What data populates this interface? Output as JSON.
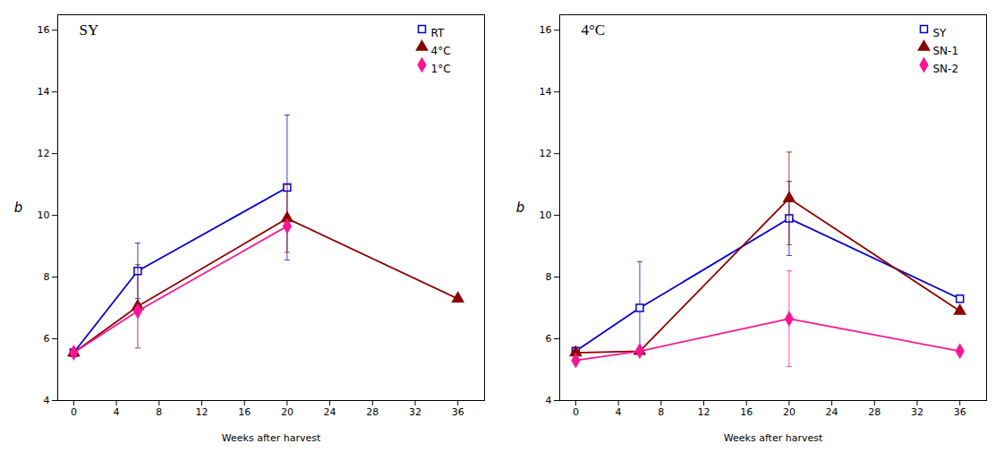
{
  "chart_data": [
    {
      "type": "line",
      "title": "SY",
      "xlabel": "Weeks after harvest",
      "ylabel": "b",
      "series": [
        {
          "name": "RT",
          "color": "#0000CD",
          "marker": "square",
          "x": [
            0,
            6,
            20
          ],
          "values": [
            5.55,
            8.2,
            10.9
          ],
          "yerr": [
            0,
            0.9,
            2.35
          ]
        },
        {
          "name": "4°C",
          "color": "#8B0000",
          "marker": "triangle",
          "x": [
            0,
            6,
            20,
            36
          ],
          "values": [
            5.55,
            7.05,
            9.9,
            7.3
          ],
          "yerr": [
            0,
            1.35,
            1.1,
            0
          ]
        },
        {
          "name": "1°C",
          "color": "#FF1493",
          "marker": "diamond",
          "x": [
            0,
            6,
            20
          ],
          "values": [
            5.55,
            6.9,
            9.65
          ],
          "yerr": [
            0,
            0,
            0
          ]
        }
      ],
      "xlim": [
        -1.5,
        38.5
      ],
      "ylim": [
        4,
        16.5
      ],
      "xticks": [
        0,
        4,
        8,
        12,
        16,
        20,
        24,
        28,
        32,
        36
      ],
      "yticks": [
        4,
        6,
        8,
        10,
        12,
        14,
        16
      ],
      "grid": false,
      "legend": "upper right"
    },
    {
      "type": "line",
      "title": "4°C",
      "xlabel": "Weeks after harvest",
      "ylabel": "b",
      "series": [
        {
          "name": "SY",
          "color": "#0000CD",
          "marker": "square",
          "x": [
            0,
            6,
            20,
            36
          ],
          "values": [
            5.6,
            7.0,
            9.9,
            7.3
          ],
          "yerr": [
            0,
            1.5,
            1.2,
            0
          ]
        },
        {
          "name": "SN-1",
          "color": "#8B0000",
          "marker": "triangle",
          "x": [
            0,
            6,
            20,
            36
          ],
          "values": [
            5.55,
            5.6,
            10.55,
            6.9
          ],
          "yerr": [
            0,
            0,
            1.5,
            0
          ]
        },
        {
          "name": "SN-2",
          "color": "#FF1493",
          "marker": "diamond",
          "x": [
            0,
            6,
            20,
            36
          ],
          "values": [
            5.3,
            5.6,
            6.65,
            5.6
          ],
          "yerr": [
            0,
            0,
            1.55,
            0
          ]
        }
      ],
      "xlim": [
        -1.5,
        38.5
      ],
      "ylim": [
        4,
        16.5
      ],
      "xticks": [
        0,
        4,
        8,
        12,
        16,
        20,
        24,
        28,
        32,
        36
      ],
      "yticks": [
        4,
        6,
        8,
        10,
        12,
        14,
        16
      ],
      "grid": false,
      "legend": "upper right"
    }
  ]
}
